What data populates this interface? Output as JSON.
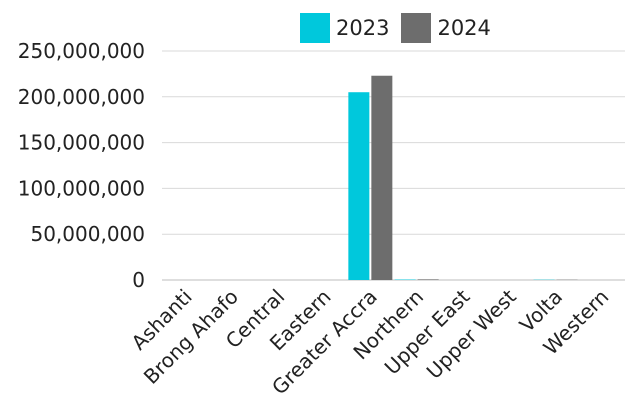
{
  "chart_data": {
    "type": "bar",
    "categories": [
      "Ashanti",
      "Brong Ahafo",
      "Central",
      "Eastern",
      "Greater Accra",
      "Northern",
      "Upper East",
      "Upper West",
      "Volta",
      "Western"
    ],
    "series": [
      {
        "name": "2023",
        "color": "#00c8dc",
        "values": [
          0,
          0,
          0,
          0,
          205000000,
          500000,
          0,
          0,
          300000,
          0
        ]
      },
      {
        "name": "2024",
        "color": "#6d6d6d",
        "values": [
          0,
          0,
          0,
          0,
          223000000,
          700000,
          0,
          0,
          300000,
          0
        ]
      }
    ],
    "yticks": [
      "0",
      "50,000,000",
      "100,000,000",
      "150,000,000",
      "200,000,000",
      "250,000,000"
    ],
    "ytick_values": [
      0,
      50000000,
      100000000,
      150000000,
      200000000,
      250000000
    ],
    "ylim": [
      0,
      250000000
    ],
    "grid": true,
    "legend_position": "top"
  }
}
